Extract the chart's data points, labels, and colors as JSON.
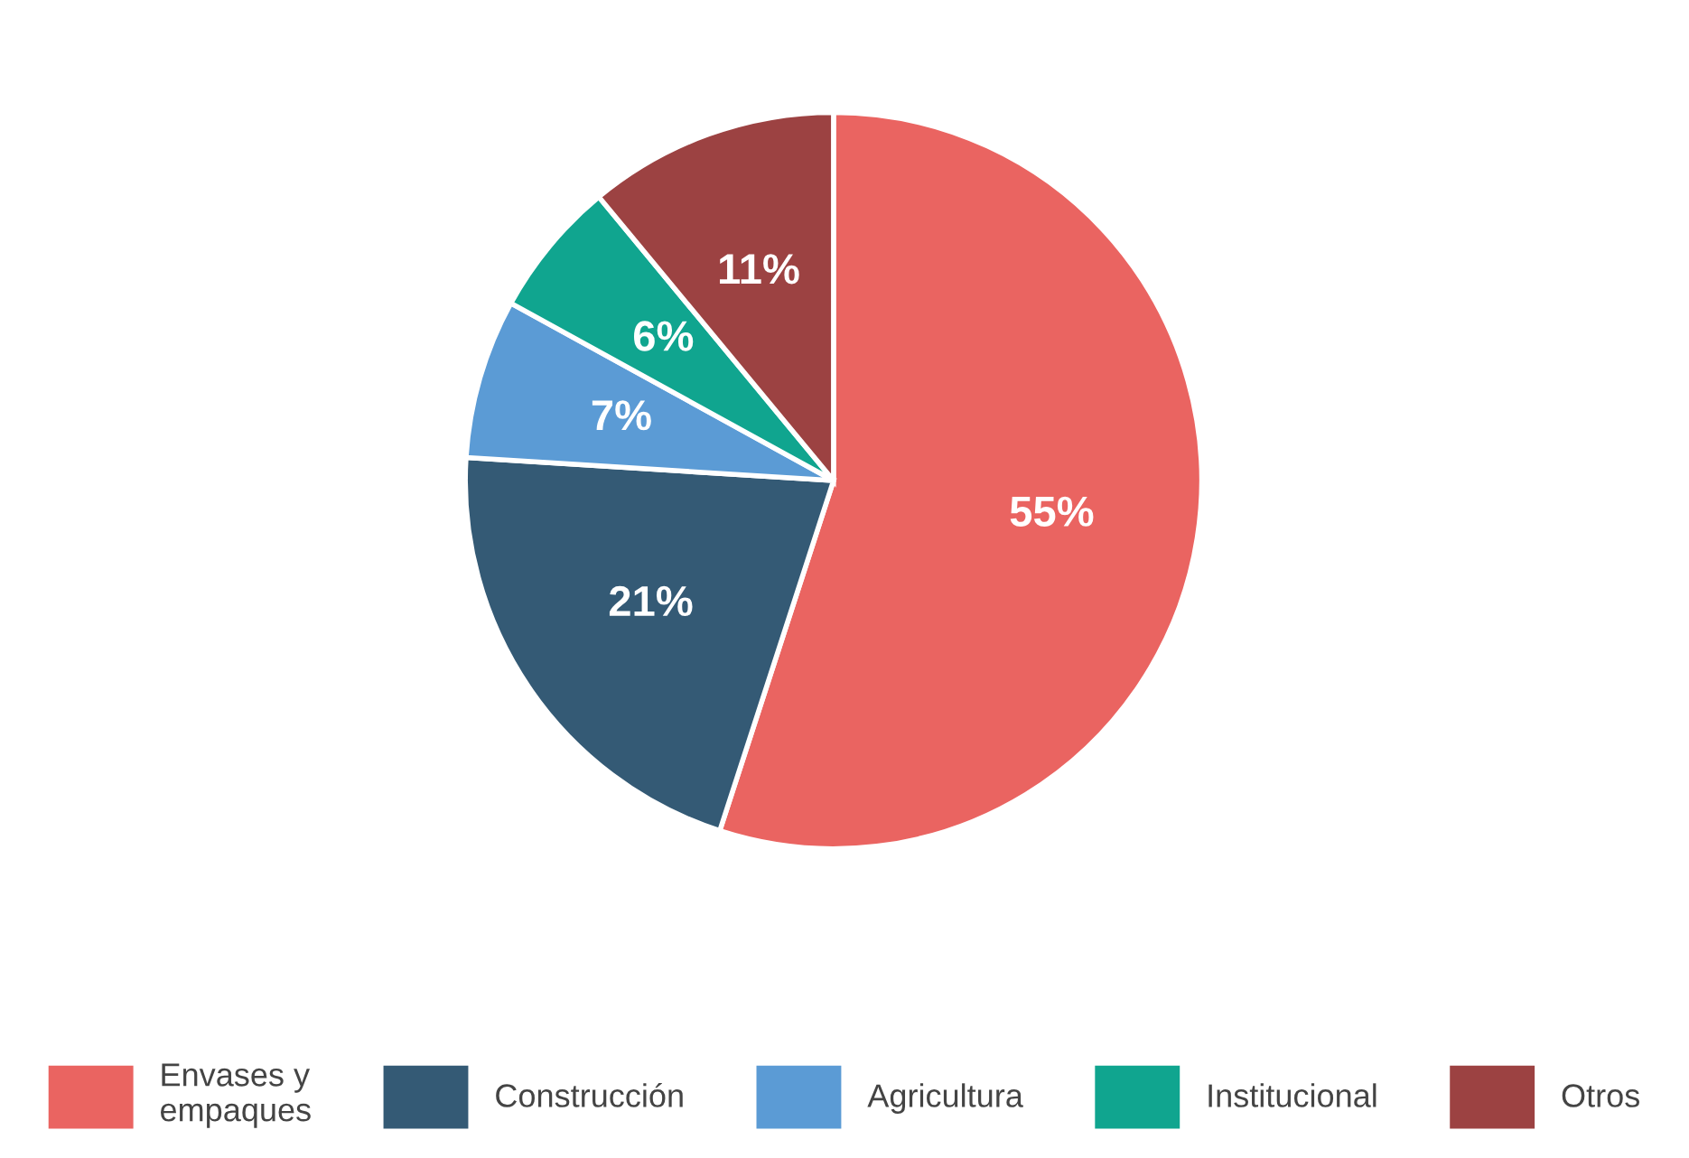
{
  "chart_data": {
    "type": "pie",
    "categories": [
      "Envases y\nempaques",
      "Construcción",
      "Agricultura",
      "Institucional",
      "Otros"
    ],
    "values": [
      55,
      21,
      7,
      6,
      11
    ],
    "value_labels": [
      "55%",
      "21%",
      "7%",
      "6%",
      "11%"
    ],
    "colors": [
      "#ea6461",
      "#345a75",
      "#5b9bd5",
      "#10a58f",
      "#9c4242"
    ],
    "legend": "bottom"
  }
}
